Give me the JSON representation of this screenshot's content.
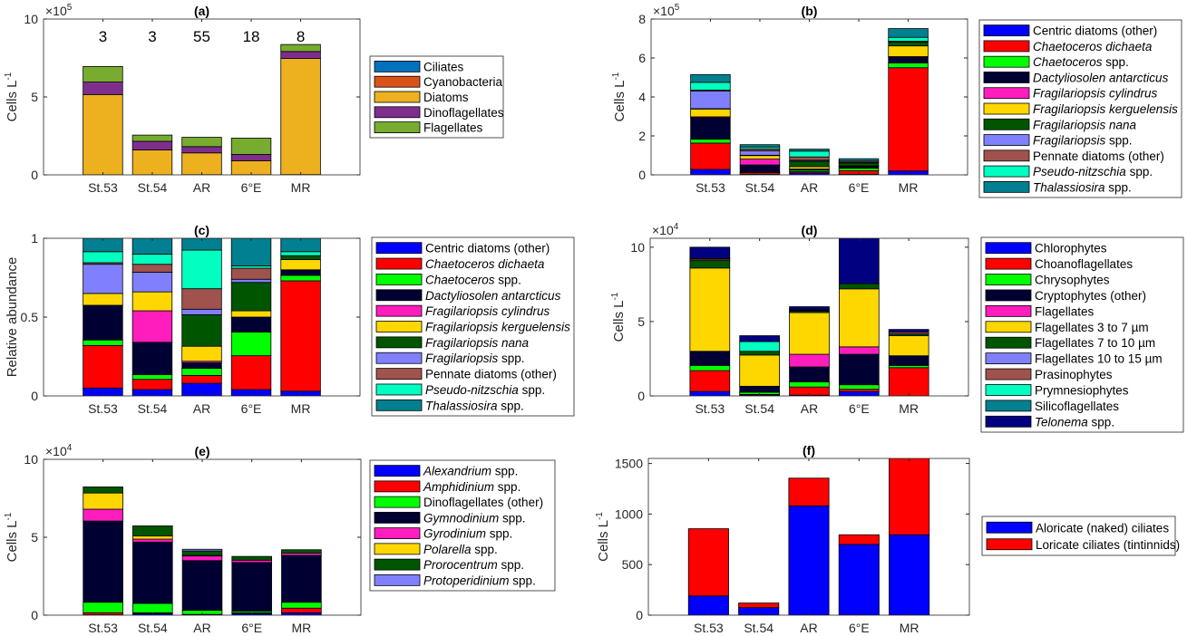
{
  "chart_data": [
    {
      "id": "a",
      "type": "bar",
      "stacked": true,
      "title": "(a)",
      "ylabel": "Cells L",
      "ylabel_sup": "-1",
      "exponent": "5",
      "ylim": [
        0,
        10
      ],
      "yticks": [
        0,
        5,
        10
      ],
      "categories": [
        "St.53",
        "St.54",
        "AR",
        "6°E",
        "MR"
      ],
      "annotations": [
        "3",
        "3",
        "55",
        "18",
        "8"
      ],
      "annotation_y": 8.9,
      "legend": "right",
      "series": [
        {
          "name": "Ciliates",
          "color": "#0072BD",
          "values": [
            0.005,
            0.002,
            0.01,
            0.008,
            0.015
          ]
        },
        {
          "name": "Cyanobacteria",
          "color": "#D95319",
          "values": [
            0,
            0,
            0,
            0,
            0
          ]
        },
        {
          "name": "Diatoms",
          "color": "#EDB120",
          "values": [
            5.15,
            1.6,
            1.4,
            0.9,
            7.45
          ]
        },
        {
          "name": "Dinoflagellates",
          "color": "#7E2F8E",
          "values": [
            0.8,
            0.55,
            0.4,
            0.4,
            0.45
          ]
        },
        {
          "name": "Flagellates",
          "color": "#77AC30",
          "values": [
            1.0,
            0.4,
            0.6,
            1.05,
            0.45
          ]
        }
      ]
    },
    {
      "id": "b",
      "type": "bar",
      "stacked": true,
      "title": "(b)",
      "ylabel": "Cells L",
      "ylabel_sup": "-1",
      "exponent": "5",
      "ylim": [
        0,
        8
      ],
      "yticks": [
        0,
        2,
        4,
        6,
        8
      ],
      "categories": [
        "St.53",
        "St.54",
        "AR",
        "6°E",
        "MR"
      ],
      "legend": "right",
      "series": [
        {
          "name": "Centric diatoms (other)",
          "italic": "",
          "color": "#0000FF",
          "values": [
            0.28,
            0.03,
            0.1,
            0.03,
            0.2
          ]
        },
        {
          "name": "Chaetoceros dichaeta",
          "italic": "Chaetoceros dichaeta",
          "color": "#FF0000",
          "values": [
            1.35,
            0.08,
            0.06,
            0.18,
            5.3
          ]
        },
        {
          "name": "Chaetoceros spp.",
          "italic": "Chaetoceros",
          "color": "#00FF00",
          "values": [
            0.2,
            0.02,
            0.08,
            0.13,
            0.25
          ]
        },
        {
          "name": "Dactyliosolen antarcticus",
          "italic": "Dactyliosolen antarcticus",
          "color": "#000033",
          "values": [
            1.1,
            0.38,
            0.04,
            0.08,
            0.3
          ]
        },
        {
          "name": "Fragilariopsis cylindrus",
          "italic": "Fragilariopsis cylindrus",
          "color": "#FF1DBE",
          "values": [
            0.05,
            0.3,
            0.02,
            0.02,
            0.02
          ]
        },
        {
          "name": "Fragilariopsis kerguelensis",
          "italic": "Fragilariopsis kerguelensis",
          "color": "#FFD700",
          "values": [
            0.4,
            0.18,
            0.12,
            0.02,
            0.55
          ]
        },
        {
          "name": "Fragilariopsis nana",
          "italic": "Fragilariopsis nana",
          "color": "#005500",
          "values": [
            0.02,
            0.02,
            0.28,
            0.15,
            0.2
          ]
        },
        {
          "name": "Fragilariopsis spp.",
          "italic": "Fragilariopsis",
          "color": "#8080FF",
          "values": [
            0.9,
            0.22,
            0.05,
            0.02,
            0.02
          ]
        },
        {
          "name": "Pennate diatoms (other)",
          "italic": "",
          "color": "#A0524D",
          "values": [
            0.05,
            0.1,
            0.17,
            0.07,
            0.02
          ]
        },
        {
          "name": "Pseudo-nitzschia spp.",
          "italic": "Pseudo-nitzschia",
          "color": "#00FFC0",
          "values": [
            0.4,
            0.1,
            0.3,
            0.01,
            0.2
          ]
        },
        {
          "name": "Thalassiosira spp.",
          "italic": "Thalassiosira",
          "color": "#008090",
          "values": [
            0.4,
            0.12,
            0.1,
            0.12,
            0.45
          ]
        }
      ]
    },
    {
      "id": "c",
      "type": "bar",
      "stacked": true,
      "title": "(c)",
      "ylabel": "Relative abundance",
      "ylabel_sup": "",
      "exponent": "",
      "ylim": [
        0,
        1
      ],
      "yticks": [
        0,
        0.5,
        1
      ],
      "categories": [
        "St.53",
        "St.54",
        "AR",
        "6°E",
        "MR"
      ],
      "legend": "right",
      "series": [
        {
          "name": "Centric diatoms (other)",
          "italic": "",
          "color": "#0000FF",
          "values": [
            0.05,
            0.04,
            0.08,
            0.04,
            0.03
          ]
        },
        {
          "name": "Chaetoceros dichaeta",
          "italic": "Chaetoceros dichaeta",
          "color": "#FF0000",
          "values": [
            0.27,
            0.065,
            0.05,
            0.215,
            0.7
          ]
        },
        {
          "name": "Chaetoceros spp.",
          "italic": "Chaetoceros",
          "color": "#00FF00",
          "values": [
            0.035,
            0.03,
            0.045,
            0.15,
            0.035
          ]
        },
        {
          "name": "Dactyliosolen antarcticus",
          "italic": "Dactyliosolen antarcticus",
          "color": "#000033",
          "values": [
            0.22,
            0.205,
            0.035,
            0.095,
            0.035
          ]
        },
        {
          "name": "Fragilariopsis cylindrus",
          "italic": "Fragilariopsis cylindrus",
          "color": "#FF1DBE",
          "values": [
            0.0,
            0.2,
            0.01,
            0.0,
            0.0
          ]
        },
        {
          "name": "Fragilariopsis kerguelensis",
          "italic": "Fragilariopsis kerguelensis",
          "color": "#FFD700",
          "values": [
            0.075,
            0.12,
            0.095,
            0.04,
            0.065
          ]
        },
        {
          "name": "Fragilariopsis nana",
          "italic": "Fragilariopsis nana",
          "color": "#005500",
          "values": [
            0.0,
            0.0,
            0.2,
            0.18,
            0.025
          ]
        },
        {
          "name": "Fragilariopsis spp.",
          "italic": "Fragilariopsis",
          "color": "#8080FF",
          "values": [
            0.185,
            0.125,
            0.035,
            0.02,
            0.0
          ]
        },
        {
          "name": "Pennate diatoms (other)",
          "italic": "",
          "color": "#A0524D",
          "values": [
            0.01,
            0.05,
            0.13,
            0.07,
            0.0
          ]
        },
        {
          "name": "Pseudo-nitzschia spp.",
          "italic": "Pseudo-nitzschia",
          "color": "#00FFC0",
          "values": [
            0.07,
            0.065,
            0.245,
            0.015,
            0.025
          ]
        },
        {
          "name": "Thalassiosira spp.",
          "italic": "Thalassiosira",
          "color": "#008090",
          "values": [
            0.085,
            0.1,
            0.075,
            0.175,
            0.085
          ]
        }
      ]
    },
    {
      "id": "d",
      "type": "bar",
      "stacked": true,
      "title": "(d)",
      "ylabel": "Cells L",
      "ylabel_sup": "-1",
      "exponent": "4",
      "ylim": [
        0,
        10.6
      ],
      "yticks": [
        0,
        5,
        10
      ],
      "categories": [
        "St.53",
        "St.54",
        "AR",
        "6°E",
        "MR"
      ],
      "legend": "right",
      "series": [
        {
          "name": "Chlorophytes",
          "italic": "",
          "color": "#0000FF",
          "values": [
            0.3,
            0.05,
            0.05,
            0.3,
            0.0
          ]
        },
        {
          "name": "Choanoflagellates",
          "italic": "",
          "color": "#FF0000",
          "values": [
            1.4,
            0.05,
            0.55,
            0.15,
            1.9
          ]
        },
        {
          "name": "Chrysophytes",
          "italic": "",
          "color": "#00FF00",
          "values": [
            0.35,
            0.15,
            0.35,
            0.3,
            0.15
          ]
        },
        {
          "name": "Cryptophytes (other)",
          "italic": "",
          "color": "#000033",
          "values": [
            0.95,
            0.4,
            1.0,
            2.05,
            0.65
          ]
        },
        {
          "name": "Flagellates",
          "italic": "",
          "color": "#FF1DBE",
          "values": [
            0.0,
            0.0,
            0.85,
            0.5,
            0.0
          ]
        },
        {
          "name": "Flagellates 3 to 7 µm",
          "italic": "",
          "color": "#FFD700",
          "values": [
            5.6,
            2.1,
            2.8,
            3.9,
            1.35
          ]
        },
        {
          "name": "Flagellates 7 to 10 µm",
          "italic": "",
          "color": "#005500",
          "values": [
            0.5,
            0.25,
            0.1,
            0.35,
            0.12
          ]
        },
        {
          "name": "Flagellates 10 to 15 µm",
          "italic": "",
          "color": "#8080FF",
          "values": [
            0.0,
            0.0,
            0.0,
            0.0,
            0.0
          ]
        },
        {
          "name": "Prasinophytes",
          "italic": "",
          "color": "#A0524D",
          "values": [
            0.1,
            0.0,
            0.0,
            0.0,
            0.12
          ]
        },
        {
          "name": "Prymnesiophytes",
          "italic": "",
          "color": "#00FFC0",
          "values": [
            0.0,
            0.65,
            0.05,
            0.0,
            0.0
          ]
        },
        {
          "name": "Silicoflagellates",
          "italic": "",
          "color": "#008090",
          "values": [
            0.05,
            0.0,
            0.05,
            0.0,
            0.0
          ]
        },
        {
          "name": "Telonema spp.",
          "italic": "Telonema",
          "color": "#000080",
          "values": [
            0.75,
            0.4,
            0.2,
            3.3,
            0.18
          ]
        }
      ]
    },
    {
      "id": "e",
      "type": "bar",
      "stacked": true,
      "title": "(e)",
      "ylabel": "Cells L",
      "ylabel_sup": "-1",
      "exponent": "4",
      "ylim": [
        0,
        10
      ],
      "yticks": [
        0,
        5,
        10
      ],
      "categories": [
        "St.53",
        "St.54",
        "AR",
        "6°E",
        "MR"
      ],
      "legend": "right",
      "series": [
        {
          "name": "Alexandrium spp.",
          "italic": "Alexandrium",
          "color": "#0000FF",
          "values": [
            0.02,
            0.1,
            0.05,
            0.1,
            0.15
          ]
        },
        {
          "name": "Amphidinium spp.",
          "italic": "Amphidinium",
          "color": "#FF0000",
          "values": [
            0.13,
            0.05,
            0.0,
            0.05,
            0.3
          ]
        },
        {
          "name": "Dinoflagellates (other)",
          "italic": "",
          "color": "#00FF00",
          "values": [
            0.68,
            0.6,
            0.26,
            0.1,
            0.38
          ]
        },
        {
          "name": "Gymnodinium spp.",
          "italic": "Gymnodinium",
          "color": "#000033",
          "values": [
            5.21,
            3.94,
            3.19,
            3.13,
            3.01
          ]
        },
        {
          "name": "Gyrodinium spp.",
          "italic": "Gyrodinium",
          "color": "#FF1DBE",
          "values": [
            0.76,
            0.19,
            0.3,
            0.15,
            0.14
          ]
        },
        {
          "name": "Polarella spp.",
          "italic": "Polarella",
          "color": "#FFD700",
          "values": [
            1.04,
            0.2,
            0.03,
            0.0,
            0.0
          ]
        },
        {
          "name": "Prorocentrum spp.",
          "italic": "Prorocentrum",
          "color": "#005500",
          "values": [
            0.39,
            0.65,
            0.29,
            0.24,
            0.22
          ]
        },
        {
          "name": "Protoperidinium spp.",
          "italic": "Protoperidinium",
          "color": "#8080FF",
          "values": [
            0.0,
            0.0,
            0.11,
            0.0,
            0.0
          ]
        }
      ]
    },
    {
      "id": "f",
      "type": "bar",
      "stacked": true,
      "title": "(f)",
      "ylabel": "Cells L",
      "ylabel_sup": "-1",
      "exponent": "",
      "ylim": [
        0,
        1550
      ],
      "yticks": [
        0,
        500,
        1000,
        1500
      ],
      "categories": [
        "St.53",
        "St.54",
        "AR",
        "6°E",
        "MR"
      ],
      "legend": "right",
      "series": [
        {
          "name": "Aloricate (naked) ciliates",
          "italic": "",
          "color": "#0000FF",
          "values": [
            190,
            75,
            1080,
            700,
            795
          ]
        },
        {
          "name": "Loricate ciliates (tintinnids)",
          "italic": "",
          "color": "#FF0000",
          "values": [
            665,
            45,
            275,
            95,
            760
          ]
        }
      ]
    }
  ]
}
